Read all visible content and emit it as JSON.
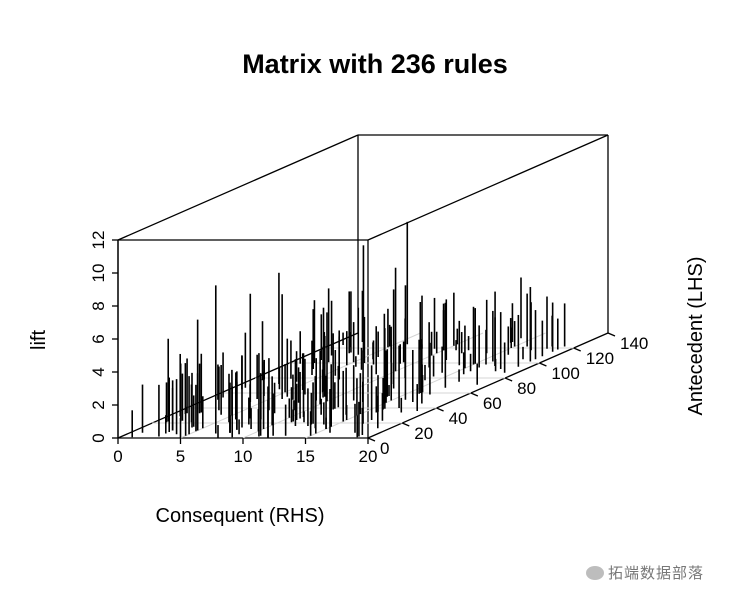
{
  "chart_data": {
    "type": "3d-scatter-histogram",
    "title": "Matrix with 236 rules",
    "xlabel": "Consequent (RHS)",
    "ylabel": "Antecedent (LHS)",
    "zlabel": "lift",
    "xlim": [
      0,
      20
    ],
    "ylim": [
      0,
      140
    ],
    "zlim": [
      0,
      12
    ],
    "xticks": [
      "0",
      "5",
      "10",
      "15",
      "20"
    ],
    "yticks": [
      "0",
      "20",
      "40",
      "60",
      "80",
      "100",
      "120",
      "140"
    ],
    "zticks": [
      "0",
      "2",
      "4",
      "6",
      "8",
      "10",
      "12"
    ],
    "n_rules": 236,
    "grid": true
  },
  "watermark": "拓端数据部落"
}
